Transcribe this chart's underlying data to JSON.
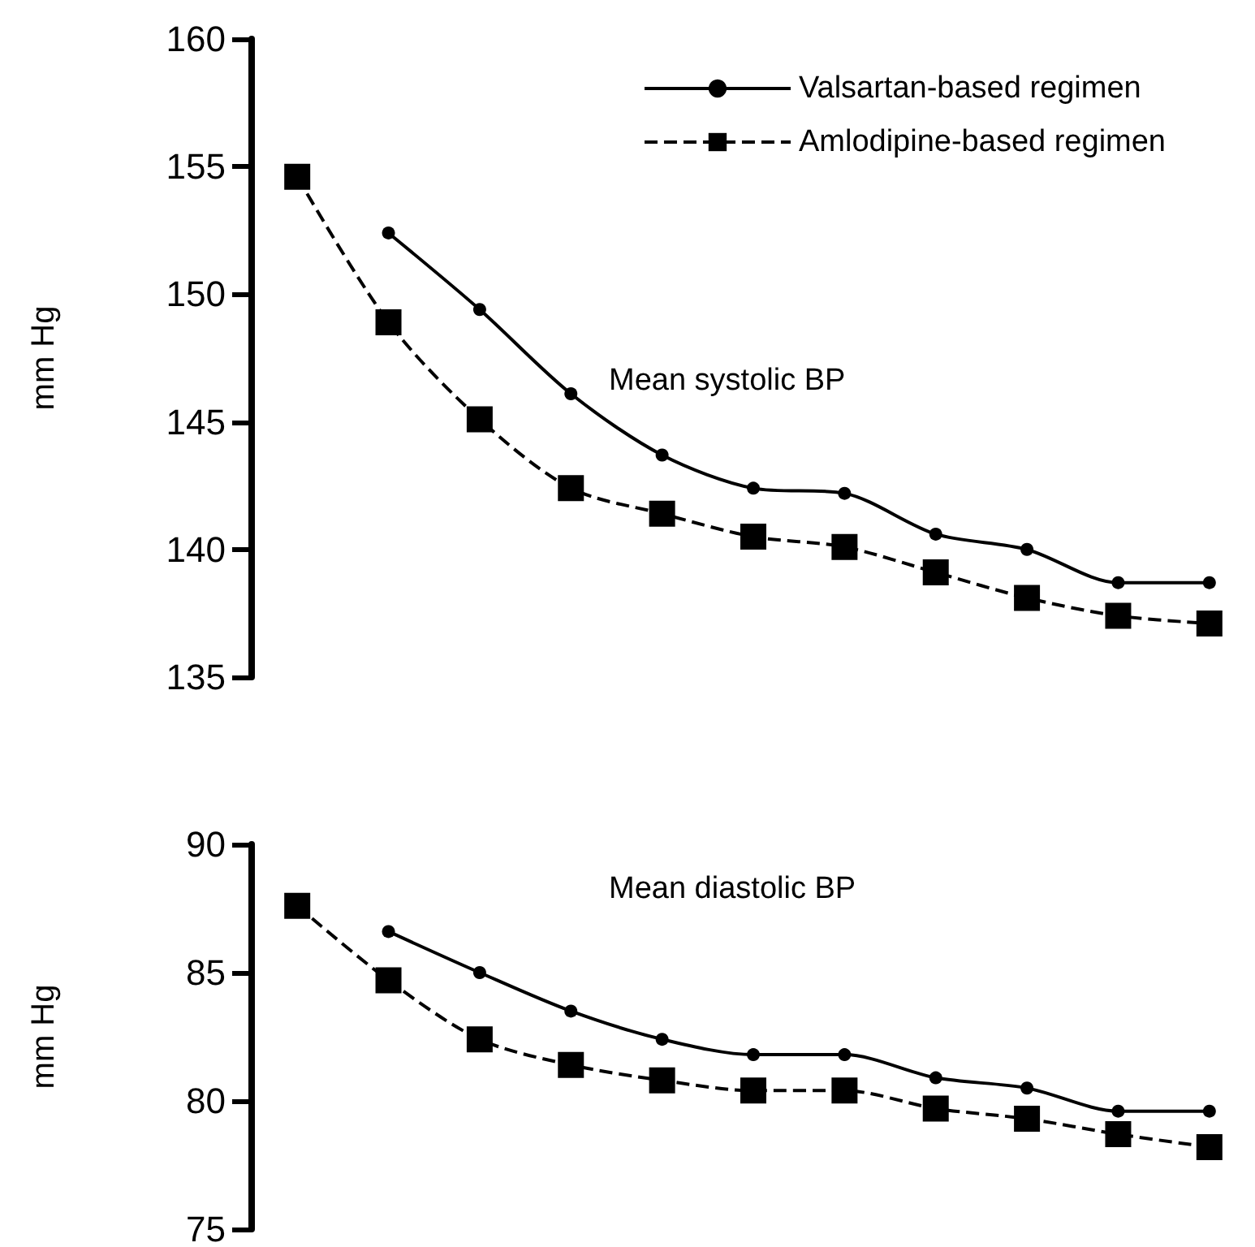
{
  "chart_data": [
    {
      "type": "line",
      "ylabel": "mm Hg",
      "annotations": [
        "Mean systolic BP"
      ],
      "categories": [
        null,
        null,
        null,
        null,
        null,
        null,
        null,
        null,
        null,
        null,
        null
      ],
      "ylim": [
        135,
        160
      ],
      "yticks": [
        135,
        140,
        145,
        150,
        155,
        160
      ],
      "tick_labels": "y",
      "grid": false,
      "legend": "top right",
      "series": [
        {
          "name": "Valsartan-based regimen",
          "color": "#000000",
          "marker": "circle",
          "line_style": "solid",
          "values": [
            null,
            152.4,
            149.4,
            146.1,
            143.7,
            142.4,
            142.2,
            140.6,
            140.0,
            138.7,
            138.7
          ]
        },
        {
          "name": "Amlodipine-based regimen",
          "color": "#000000",
          "marker": "square",
          "line_style": "dashed",
          "values": [
            154.6,
            148.9,
            145.1,
            142.4,
            141.4,
            140.5,
            140.1,
            139.1,
            138.1,
            137.4,
            137.1
          ]
        }
      ]
    },
    {
      "type": "line",
      "ylabel": "mm Hg",
      "annotations": [
        "Mean diastolic BP"
      ],
      "categories": [
        null,
        null,
        null,
        null,
        null,
        null,
        null,
        null,
        null,
        null,
        null
      ],
      "ylim": [
        75,
        90
      ],
      "yticks": [
        75,
        80,
        85,
        90
      ],
      "tick_labels": "y",
      "grid": false,
      "legend": false,
      "series": [
        {
          "color": "#000000",
          "marker": "circle",
          "line_style": "solid",
          "values": [
            null,
            86.6,
            85.0,
            83.5,
            82.4,
            81.8,
            81.8,
            80.9,
            80.5,
            79.6,
            79.6
          ]
        },
        {
          "color": "#000000",
          "marker": "square",
          "line_style": "dashed",
          "values": [
            87.6,
            84.7,
            82.4,
            81.4,
            80.8,
            80.4,
            80.4,
            79.7,
            79.3,
            78.7,
            78.2
          ]
        }
      ]
    }
  ]
}
